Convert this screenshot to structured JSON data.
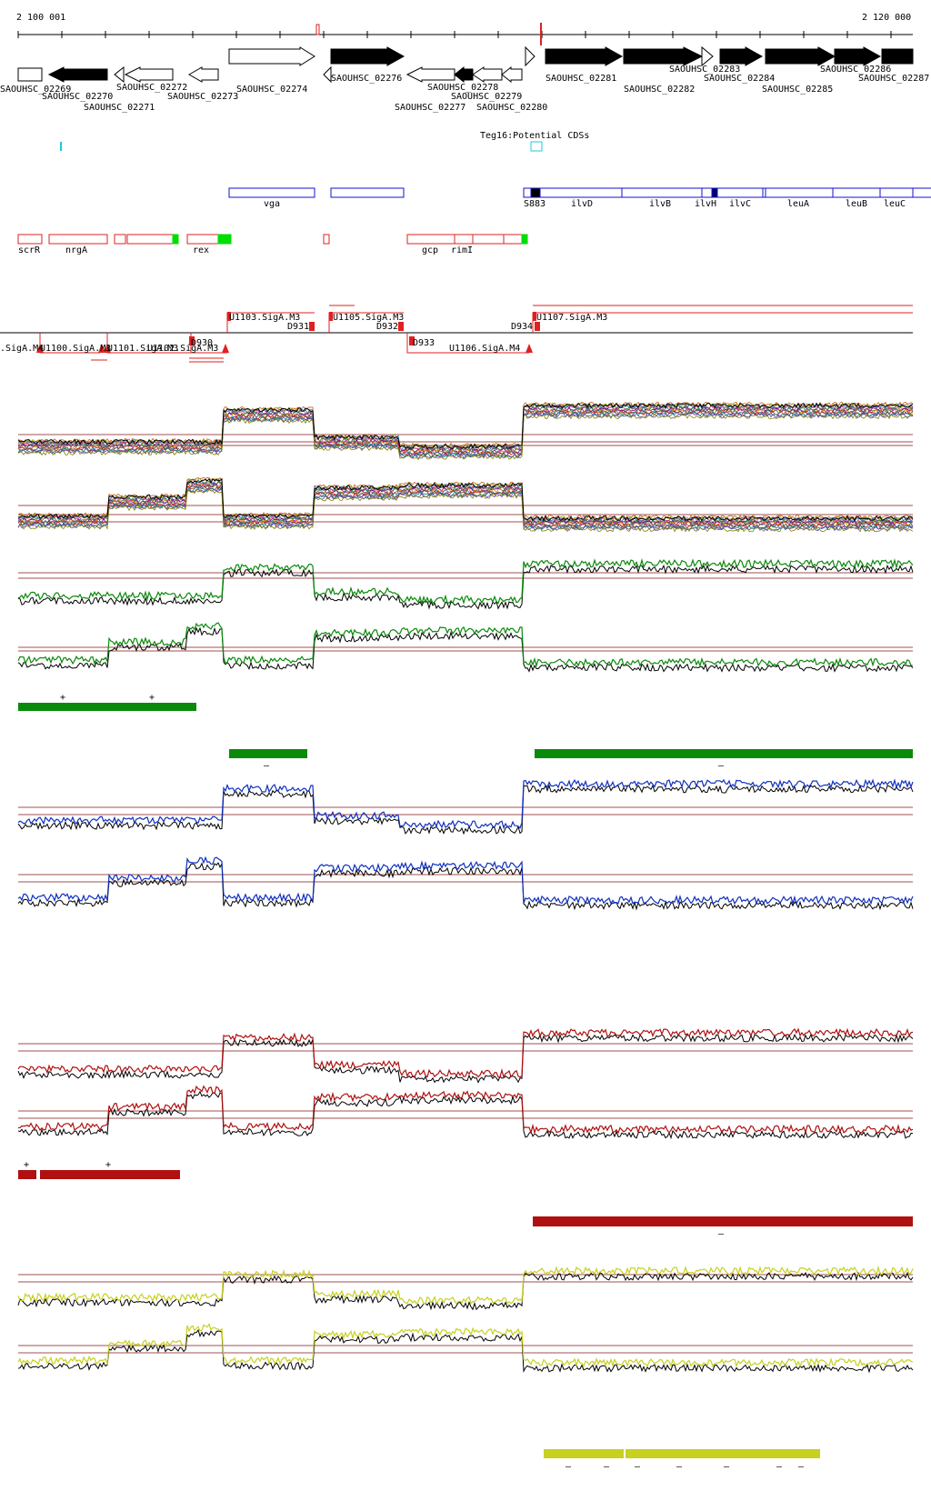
{
  "axis": {
    "start_label": "2 100 001",
    "end_label": "2 120 000"
  },
  "colors": {
    "feature_red": "#e02020",
    "feature_blue": "#1010d0",
    "feature_green": "#00dd00",
    "track_green": "#0a8a0a",
    "track_blue": "#1030c0",
    "track_red": "#b01010",
    "track_yellow": "#c8d020",
    "cyan": "#20c8d8",
    "threshold_line": "#a05050"
  },
  "genes": [
    {
      "label": "SAOUHSC_02269",
      "strand": "+",
      "filled": false
    },
    {
      "label": "SAOUHSC_02270",
      "strand": "-",
      "filled": true
    },
    {
      "label": "SAOUHSC_02271",
      "strand": "-",
      "filled": false
    },
    {
      "label": "SAOUHSC_02272",
      "strand": "-",
      "filled": false
    },
    {
      "label": "SAOUHSC_02273",
      "strand": "-",
      "filled": false
    },
    {
      "label": "SAOUHSC_02274",
      "strand": "+",
      "filled": false
    },
    {
      "label": "SAOUHSC_02276",
      "strand": "+",
      "filled": true
    },
    {
      "label": "SAOUHSC_02277",
      "strand": "-",
      "filled": false
    },
    {
      "label": "SAOUHSC_02278",
      "strand": "-",
      "filled": true
    },
    {
      "label": "SAOUHSC_02279",
      "strand": "-",
      "filled": false
    },
    {
      "label": "SAOUHSC_02280",
      "strand": "-",
      "filled": false
    },
    {
      "label": "SAOUHSC_02281",
      "strand": "+",
      "filled": true
    },
    {
      "label": "SAOUHSC_02282",
      "strand": "+",
      "filled": true
    },
    {
      "label": "SAOUHSC_02283",
      "strand": "+",
      "filled": false
    },
    {
      "label": "SAOUHSC_02284",
      "strand": "+",
      "filled": true
    },
    {
      "label": "SAOUHSC_02285",
      "strand": "+",
      "filled": true
    },
    {
      "label": "SAOUHSC_02286",
      "strand": "+",
      "filled": true
    },
    {
      "label": "SAOUHSC_02287",
      "strand": "+",
      "filled": true
    }
  ],
  "teg_label": "Teg16:Potential CDSs",
  "operons": [
    {
      "label": "vga"
    },
    {
      "label": ""
    },
    {
      "label": "S883"
    },
    {
      "label": "ilvD"
    },
    {
      "label": "ilvB"
    },
    {
      "label": "ilvH"
    },
    {
      "label": "ilvC"
    },
    {
      "label": "leuA"
    },
    {
      "label": "leuB"
    },
    {
      "label": "leuC"
    }
  ],
  "regulons": [
    {
      "label": "scrR"
    },
    {
      "label": "nrgA"
    },
    {
      "label": "rex"
    },
    {
      "label": "gcp"
    },
    {
      "label": "rimI"
    }
  ],
  "transcripts_upper": [
    {
      "label": "U1103.SigA.M3"
    },
    {
      "label": "D931"
    },
    {
      "label": "U1105.SigA.M3"
    },
    {
      "label": "D932"
    },
    {
      "label": "D934"
    },
    {
      "label": "U1107.SigA.M3"
    }
  ],
  "transcripts_lower": [
    {
      "label": ".SigA.M4"
    },
    {
      "label": "U1100.SigA.M3"
    },
    {
      "label": "U1101.SigA.M3"
    },
    {
      "label": "U1102.SigA.M3"
    },
    {
      "label": "D930"
    },
    {
      "label": "D933"
    },
    {
      "label": "U1106.SigA.M4"
    }
  ],
  "segments": {
    "green_plus": [
      {
        "sign": "+"
      },
      {
        "sign": "+"
      }
    ],
    "green_minus": [
      {
        "sign": "–"
      },
      {
        "sign": "–"
      }
    ],
    "red_plus": [
      {
        "sign": "+"
      },
      {
        "sign": "+"
      }
    ],
    "red_minus": [
      {
        "sign": "–"
      }
    ],
    "yellow_minus": [
      {
        "sign": "–"
      },
      {
        "sign": "–"
      },
      {
        "sign": "–"
      },
      {
        "sign": "–"
      },
      {
        "sign": "–"
      },
      {
        "sign": "–"
      },
      {
        "sign": "–"
      }
    ]
  },
  "profile_levels": {
    "regions": [
      "20-120",
      "120-205",
      "205-245",
      "245-345",
      "345-440",
      "440-575",
      "575-1005"
    ],
    "plus_strand": [
      0.2,
      0.2,
      0.2,
      0.9,
      0.3,
      0.1,
      1.0
    ],
    "minus_strand": [
      0.2,
      0.6,
      0.95,
      0.2,
      0.8,
      0.85,
      0.15
    ]
  }
}
